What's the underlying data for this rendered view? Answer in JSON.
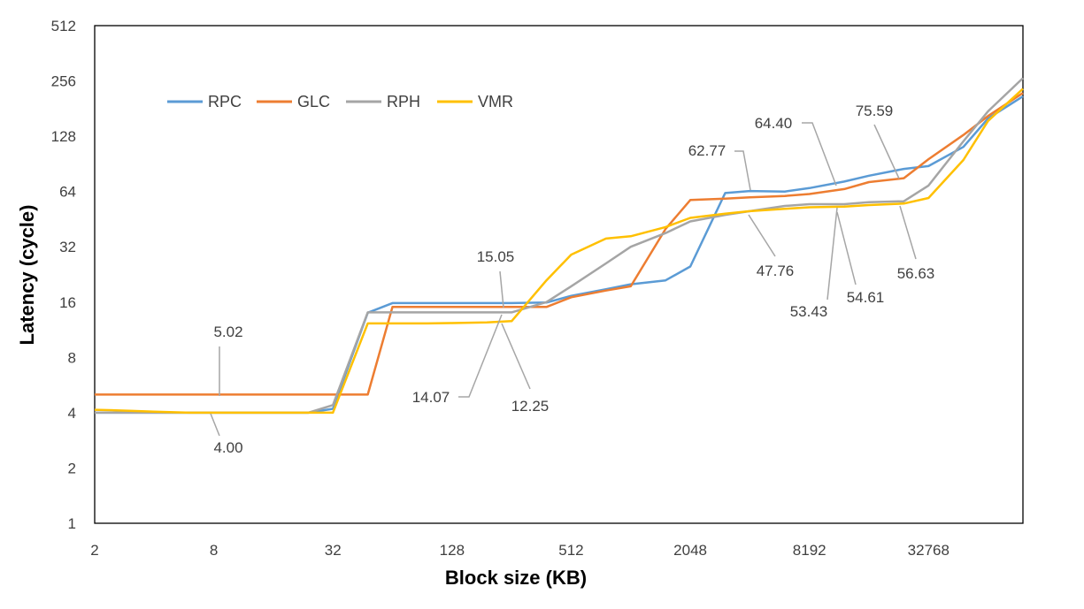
{
  "chart_data": {
    "type": "line",
    "xlabel": "Block size (KB)",
    "ylabel": "Latency (cycle)",
    "x_scale": "log2",
    "y_scale": "log2",
    "xlim": [
      2,
      98304
    ],
    "ylim": [
      1,
      512
    ],
    "x_ticks": [
      "2",
      "8",
      "32",
      "128",
      "512",
      "2048",
      "8192",
      "32768"
    ],
    "y_ticks": [
      "1",
      "2",
      "4",
      "8",
      "16",
      "32",
      "64",
      "128",
      "256",
      "512"
    ],
    "x": [
      2,
      3,
      4,
      6,
      8,
      12,
      16,
      24,
      32,
      48,
      64,
      96,
      128,
      192,
      256,
      384,
      512,
      768,
      1024,
      1536,
      2048,
      3072,
      4096,
      6144,
      8192,
      12288,
      16384,
      24576,
      32768,
      49152,
      65536,
      98304
    ],
    "legend": {
      "placement": "top-left"
    },
    "series": [
      {
        "name": "RPC",
        "color": "#5B9BD5",
        "values": [
          4.0,
          4.0,
          4.0,
          4.0,
          4.0,
          4.0,
          4.0,
          4.0,
          4.2,
          14.0,
          15.8,
          15.8,
          15.8,
          15.8,
          15.8,
          15.9,
          17.3,
          18.8,
          20.0,
          21.0,
          25.0,
          62.77,
          64.4,
          64.0,
          66.8,
          72.5,
          78.0,
          85.0,
          88.0,
          112.0,
          160.0,
          211.0
        ]
      },
      {
        "name": "GLC",
        "color": "#ED7D31",
        "values": [
          5.02,
          5.02,
          5.02,
          5.02,
          5.02,
          5.02,
          5.02,
          5.02,
          5.02,
          5.02,
          15.05,
          15.05,
          15.05,
          15.05,
          15.05,
          15.05,
          17.0,
          18.5,
          19.5,
          40.0,
          57.5,
          58.5,
          59.5,
          60.5,
          62.0,
          66.0,
          72.0,
          75.59,
          96.0,
          130.0,
          165.0,
          220.0
        ]
      },
      {
        "name": "RPH",
        "color": "#A5A5A5",
        "values": [
          4.0,
          4.0,
          4.0,
          4.0,
          4.0,
          4.0,
          4.0,
          4.0,
          4.4,
          14.07,
          14.07,
          14.07,
          14.07,
          14.07,
          14.07,
          16.0,
          19.5,
          26.0,
          32.0,
          38.0,
          44.0,
          47.76,
          50.0,
          53.43,
          54.61,
          54.61,
          56.0,
          56.63,
          69.0,
          120.0,
          175.0,
          265.0
        ]
      },
      {
        "name": "VMR",
        "color": "#FFC000",
        "values": [
          4.15,
          4.1,
          4.05,
          4.0,
          4.0,
          4.0,
          4.0,
          4.0,
          4.0,
          12.25,
          12.25,
          12.25,
          12.3,
          12.4,
          12.6,
          21.0,
          29.0,
          35.5,
          36.5,
          41.0,
          46.0,
          48.5,
          50.0,
          51.5,
          52.5,
          53.0,
          54.0,
          55.0,
          59.0,
          95.0,
          155.0,
          232.0
        ]
      }
    ],
    "annotations": [
      {
        "text": "5.02"
      },
      {
        "text": "4.00"
      },
      {
        "text": "15.05"
      },
      {
        "text": "14.07"
      },
      {
        "text": "12.25"
      },
      {
        "text": "62.77"
      },
      {
        "text": "64.40"
      },
      {
        "text": "75.59"
      },
      {
        "text": "47.76"
      },
      {
        "text": "53.43"
      },
      {
        "text": "54.61"
      },
      {
        "text": "56.63"
      }
    ]
  }
}
